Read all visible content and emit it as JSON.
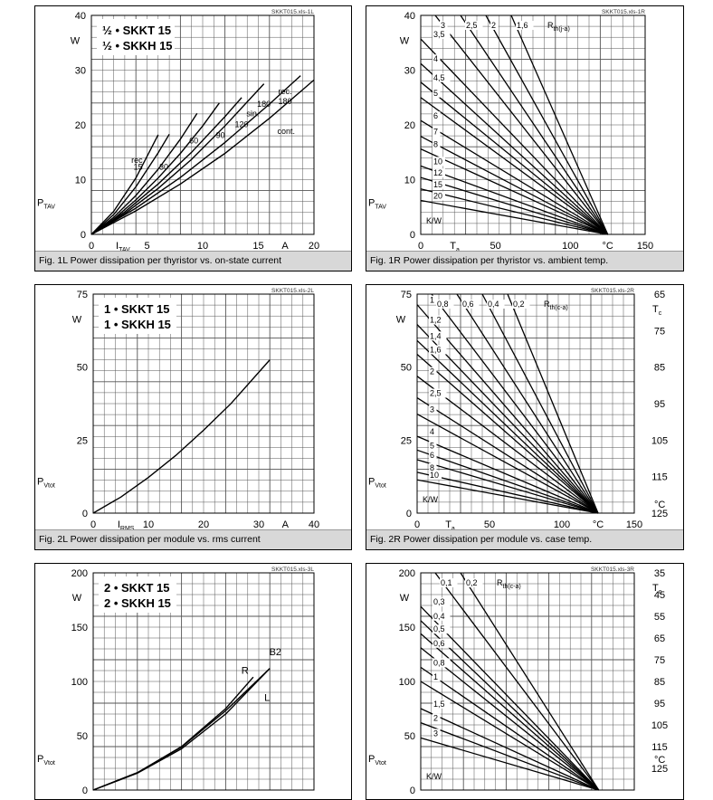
{
  "chart_data": [
    {
      "id": "1L",
      "type": "line",
      "file_label": "SKKT015.xls-1L",
      "caption": "Fig. 1L Power dissipation per thyristor vs. on-state current",
      "title_lines": [
        "½ • SKKT 15",
        "½ • SKKH 15"
      ],
      "xlim": [
        0,
        20
      ],
      "ylim": [
        0,
        40
      ],
      "x_ticks": [
        "0",
        "5",
        "10",
        "15",
        "20"
      ],
      "x_tick_values": [
        0,
        5,
        10,
        15,
        20
      ],
      "y_ticks": [
        "0",
        "10",
        "20",
        "30",
        "40"
      ],
      "y_tick_values": [
        0,
        10,
        20,
        30,
        40
      ],
      "xlabel": "I",
      "xlabel_sub": "TAV",
      "xunit": "A",
      "ylabel": "P",
      "ylabel_sub": "TAV",
      "yunit": "W",
      "series": [
        {
          "name": "rec. 15",
          "x": [
            0,
            2,
            4,
            6
          ],
          "y": [
            0,
            4.2,
            10.3,
            18.2
          ]
        },
        {
          "name": "rec. 30",
          "x": [
            0,
            2,
            4,
            6,
            7
          ],
          "y": [
            0,
            3.6,
            8.7,
            14.9,
            18.3
          ]
        },
        {
          "name": "60",
          "x": [
            0,
            2,
            4,
            6,
            8,
            9.5
          ],
          "y": [
            0,
            3.1,
            7.1,
            11.9,
            17.4,
            22.1
          ]
        },
        {
          "name": "90",
          "x": [
            0,
            2,
            4,
            6,
            8,
            10,
            11.5
          ],
          "y": [
            0,
            2.8,
            6.3,
            10.3,
            14.8,
            19.8,
            24
          ]
        },
        {
          "name": "120",
          "x": [
            0,
            3,
            6,
            9,
            12,
            13.5
          ],
          "y": [
            0,
            4.1,
            9.2,
            15,
            21.5,
            25
          ]
        },
        {
          "name": "sin. 180",
          "x": [
            0,
            3,
            6,
            9,
            12,
            15.5
          ],
          "y": [
            0,
            3.8,
            8.4,
            13.7,
            19.8,
            27.5
          ]
        },
        {
          "name": "rec. 180",
          "x": [
            0,
            4,
            8,
            12,
            16,
            18.8
          ],
          "y": [
            0,
            4.8,
            10.4,
            16.8,
            23.8,
            29
          ]
        },
        {
          "name": "cont.",
          "x": [
            0,
            4,
            8,
            12,
            16,
            20
          ],
          "y": [
            0,
            4.3,
            9.2,
            14.8,
            21.2,
            28.2
          ]
        }
      ],
      "annotations": [
        "rec.",
        "15",
        "30",
        "60",
        "90",
        "120",
        "sin.",
        "180",
        "rec.",
        "180",
        "cont."
      ]
    },
    {
      "id": "1R",
      "type": "line",
      "file_label": "SKKT015.xls-1R",
      "caption": "Fig. 1R Power dissipation per thyristor vs. ambient temp.",
      "xlim": [
        0,
        150
      ],
      "ylim": [
        0,
        40
      ],
      "x_ticks": [
        "0",
        "50",
        "100",
        "150"
      ],
      "x_tick_values": [
        0,
        50,
        100,
        150
      ],
      "y_ticks": [
        "0",
        "10",
        "20",
        "30",
        "40"
      ],
      "y_tick_values": [
        0,
        10,
        20,
        30,
        40
      ],
      "xlabel": "T",
      "xlabel_sub": "a",
      "xunit": "°C",
      "ylabel": "P",
      "ylabel_sub": "TAV",
      "yunit": "W",
      "param_label": "R",
      "param_sub": "th(j-a)",
      "param_unit": "K/W",
      "line_end_x": 125,
      "rth_values": [
        "3",
        "2,5",
        "2",
        "1,6",
        "3,5",
        "4",
        "4,5",
        "5",
        "6",
        "7",
        "8",
        "10",
        "12",
        "15",
        "20"
      ],
      "series_start_y": [
        40,
        40,
        40,
        40,
        35.7,
        31.2,
        27.8,
        25,
        20.8,
        17.9,
        15.6,
        12.5,
        10.4,
        8.3,
        6.2
      ]
    },
    {
      "id": "2L",
      "type": "line",
      "file_label": "SKKT015.xls-2L",
      "caption": "Fig. 2L Power dissipation per module vs. rms current",
      "title_lines": [
        "1 • SKKT 15",
        "1 • SKKH 15"
      ],
      "xlim": [
        0,
        40
      ],
      "ylim": [
        0,
        75
      ],
      "x_ticks": [
        "0",
        "10",
        "20",
        "30",
        "40"
      ],
      "x_tick_values": [
        0,
        10,
        20,
        30,
        40
      ],
      "y_ticks": [
        "0",
        "25",
        "50",
        "75"
      ],
      "y_tick_values": [
        0,
        25,
        50,
        75
      ],
      "xlabel": "I",
      "xlabel_sub": "RMS",
      "xunit": "A",
      "ylabel": "P",
      "ylabel_sub": "Vtot",
      "yunit": "W",
      "series": [
        {
          "name": "P",
          "x": [
            0,
            5,
            10,
            15,
            20,
            25,
            32
          ],
          "y": [
            0,
            5.5,
            12.2,
            19.8,
            28.4,
            37.6,
            52.5
          ]
        }
      ]
    },
    {
      "id": "2R",
      "type": "line",
      "file_label": "SKKT015.xls-2R",
      "caption": "Fig. 2R Power dissipation per module vs. case temp.",
      "xlim": [
        0,
        150
      ],
      "ylim": [
        0,
        75
      ],
      "x_ticks": [
        "0",
        "50",
        "100",
        "150"
      ],
      "x_tick_values": [
        0,
        50,
        100,
        150
      ],
      "y_ticks": [
        "0",
        "25",
        "50",
        "75"
      ],
      "y_tick_values": [
        0,
        25,
        50,
        75
      ],
      "right_ticks": [
        "65",
        "75",
        "85",
        "95",
        "105",
        "115",
        "125"
      ],
      "right_tick_y": [
        75,
        62.5,
        50,
        37.5,
        25,
        12.5,
        0
      ],
      "right_label": "T",
      "right_label_sub": "c",
      "right_unit": "°C",
      "xlabel": "T",
      "xlabel_sub": "a",
      "xunit": "°C",
      "ylabel": "P",
      "ylabel_sub": "Vtot",
      "yunit": "W",
      "param_label": "R",
      "param_sub": "th(c-a)",
      "param_unit": "K/W",
      "line_end_x": 125,
      "rth_values": [
        "0,8",
        "0,6",
        "0,4",
        "0,2",
        "1",
        "1,2",
        "1,4",
        "1,6",
        "2",
        "2,5",
        "3",
        "4",
        "5",
        "6",
        "8",
        "10"
      ],
      "series_start_y": [
        75,
        75,
        75,
        75,
        71.4,
        64.6,
        59.1,
        54.4,
        46.9,
        39.5,
        33.9,
        26.3,
        21.6,
        18.3,
        14,
        11.4
      ]
    },
    {
      "id": "3L",
      "type": "line",
      "file_label": "SKKT015.xls-3L",
      "title_lines": [
        "2 • SKKT 15",
        "2 • SKKH 15"
      ],
      "xlim": [
        0,
        40
      ],
      "ylim": [
        0,
        200
      ],
      "y_ticks": [
        "0",
        "50",
        "100",
        "150",
        "200"
      ],
      "y_tick_values": [
        0,
        50,
        100,
        150,
        200
      ],
      "ylabel": "P",
      "ylabel_sub": "Vtot",
      "yunit": "W",
      "series": [
        {
          "name": "R",
          "x": [
            0,
            8,
            16,
            24,
            29
          ],
          "y": [
            0,
            16,
            40,
            75,
            104
          ]
        },
        {
          "name": "L",
          "x": [
            0,
            8,
            16,
            24,
            32
          ],
          "y": [
            0,
            15.5,
            38,
            70,
            112
          ]
        },
        {
          "name": "B2",
          "x": [
            0,
            8,
            16,
            24,
            32
          ],
          "y": [
            0,
            16,
            39.5,
            73,
            112
          ]
        }
      ],
      "annotations": [
        "R",
        "L",
        "B2"
      ]
    },
    {
      "id": "3R",
      "type": "line",
      "file_label": "SKKT015.xls-3R",
      "xlim": [
        0,
        150
      ],
      "ylim": [
        0,
        200
      ],
      "y_ticks": [
        "0",
        "50",
        "100",
        "150",
        "200"
      ],
      "y_tick_values": [
        0,
        50,
        100,
        150,
        200
      ],
      "right_ticks": [
        "35",
        "45",
        "55",
        "65",
        "75",
        "85",
        "95",
        "105",
        "115",
        "125"
      ],
      "right_tick_y": [
        200,
        180,
        160,
        140,
        120,
        100,
        80,
        60,
        40,
        20
      ],
      "right_label": "T",
      "right_label_sub": "c",
      "right_unit": "°C",
      "ylabel": "P",
      "ylabel_sub": "Vtot",
      "yunit": "W",
      "param_label": "R",
      "param_sub": "th(c-a)",
      "param_unit": "K/W",
      "line_end_x": 125,
      "rth_values": [
        "0,1",
        "0,2",
        "0,3",
        "0,4",
        "0,5",
        "0,6",
        "0,8",
        "1",
        "1,5",
        "2",
        "3"
      ],
      "series_start_y": [
        200,
        200,
        169,
        156,
        144,
        131,
        113,
        100,
        75,
        62,
        48
      ]
    }
  ]
}
